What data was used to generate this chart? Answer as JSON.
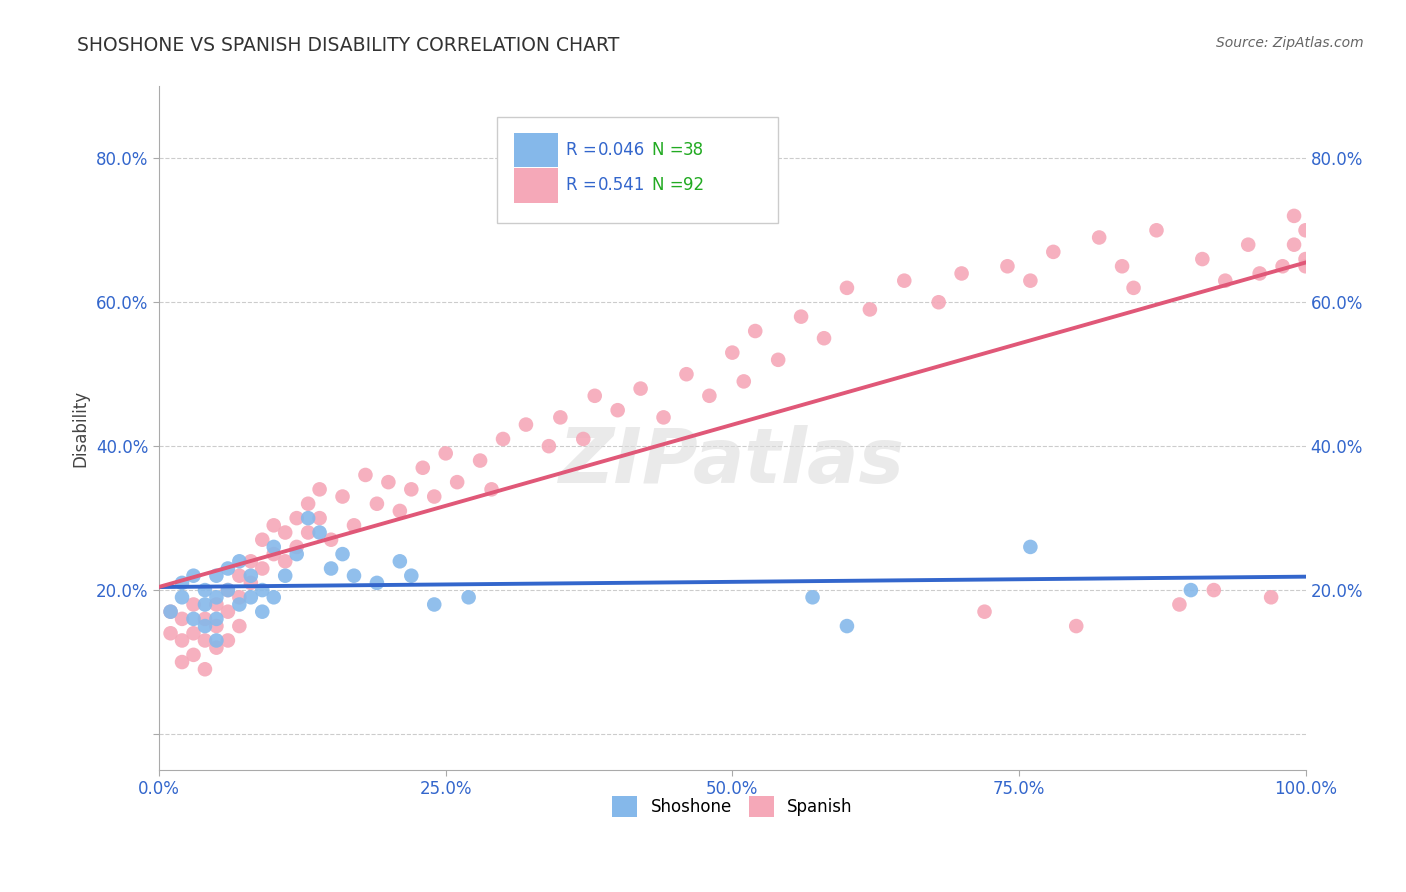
{
  "title": "SHOSHONE VS SPANISH DISABILITY CORRELATION CHART",
  "source": "Source: ZipAtlas.com",
  "ylabel": "Disability",
  "xlim": [
    0.0,
    1.0
  ],
  "ylim": [
    -0.05,
    0.9
  ],
  "y_ticks": [
    0.0,
    0.2,
    0.4,
    0.6,
    0.8
  ],
  "y_tick_labels": [
    "",
    "20.0%",
    "40.0%",
    "60.0%",
    "80.0%"
  ],
  "x_ticks": [
    0.0,
    0.25,
    0.5,
    0.75,
    1.0
  ],
  "x_tick_labels": [
    "0.0%",
    "25.0%",
    "50.0%",
    "75.0%",
    "100.0%"
  ],
  "shoshone_R": 0.046,
  "shoshone_N": 38,
  "spanish_R": 0.541,
  "spanish_N": 92,
  "shoshone_color": "#85B8EA",
  "spanish_color": "#F5A8B8",
  "shoshone_line_color": "#3366CC",
  "spanish_line_color": "#E05878",
  "legend_N_color": "#22AA22",
  "background_color": "#FFFFFF",
  "grid_color": "#CCCCCC",
  "title_color": "#333333",
  "watermark": "ZIPatlas",
  "shoshone_x": [
    0.01,
    0.02,
    0.02,
    0.03,
    0.03,
    0.04,
    0.04,
    0.04,
    0.05,
    0.05,
    0.05,
    0.05,
    0.06,
    0.06,
    0.07,
    0.07,
    0.08,
    0.08,
    0.09,
    0.09,
    0.1,
    0.1,
    0.11,
    0.12,
    0.13,
    0.14,
    0.15,
    0.16,
    0.17,
    0.19,
    0.21,
    0.22,
    0.24,
    0.27,
    0.57,
    0.6,
    0.76,
    0.9
  ],
  "shoshone_y": [
    0.17,
    0.19,
    0.21,
    0.16,
    0.22,
    0.15,
    0.18,
    0.2,
    0.16,
    0.19,
    0.22,
    0.13,
    0.2,
    0.23,
    0.18,
    0.24,
    0.19,
    0.22,
    0.2,
    0.17,
    0.19,
    0.26,
    0.22,
    0.25,
    0.3,
    0.28,
    0.23,
    0.25,
    0.22,
    0.21,
    0.24,
    0.22,
    0.18,
    0.19,
    0.19,
    0.15,
    0.26,
    0.2
  ],
  "spanish_x": [
    0.01,
    0.01,
    0.02,
    0.02,
    0.02,
    0.03,
    0.03,
    0.03,
    0.04,
    0.04,
    0.04,
    0.05,
    0.05,
    0.05,
    0.06,
    0.06,
    0.06,
    0.07,
    0.07,
    0.07,
    0.08,
    0.08,
    0.09,
    0.09,
    0.1,
    0.1,
    0.11,
    0.11,
    0.12,
    0.12,
    0.13,
    0.13,
    0.14,
    0.14,
    0.15,
    0.16,
    0.17,
    0.18,
    0.19,
    0.2,
    0.21,
    0.22,
    0.23,
    0.24,
    0.25,
    0.26,
    0.28,
    0.29,
    0.3,
    0.32,
    0.34,
    0.35,
    0.37,
    0.38,
    0.4,
    0.42,
    0.44,
    0.46,
    0.48,
    0.5,
    0.51,
    0.52,
    0.54,
    0.56,
    0.58,
    0.6,
    0.62,
    0.65,
    0.68,
    0.7,
    0.72,
    0.74,
    0.76,
    0.78,
    0.8,
    0.82,
    0.84,
    0.87,
    0.89,
    0.91,
    0.93,
    0.95,
    0.96,
    0.97,
    0.98,
    0.99,
    0.99,
    1.0,
    1.0,
    1.0,
    0.85,
    0.92
  ],
  "spanish_y": [
    0.17,
    0.14,
    0.13,
    0.16,
    0.1,
    0.18,
    0.14,
    0.11,
    0.16,
    0.13,
    0.09,
    0.18,
    0.15,
    0.12,
    0.2,
    0.17,
    0.13,
    0.22,
    0.19,
    0.15,
    0.24,
    0.21,
    0.27,
    0.23,
    0.29,
    0.25,
    0.28,
    0.24,
    0.3,
    0.26,
    0.32,
    0.28,
    0.34,
    0.3,
    0.27,
    0.33,
    0.29,
    0.36,
    0.32,
    0.35,
    0.31,
    0.34,
    0.37,
    0.33,
    0.39,
    0.35,
    0.38,
    0.34,
    0.41,
    0.43,
    0.4,
    0.44,
    0.41,
    0.47,
    0.45,
    0.48,
    0.44,
    0.5,
    0.47,
    0.53,
    0.49,
    0.56,
    0.52,
    0.58,
    0.55,
    0.62,
    0.59,
    0.63,
    0.6,
    0.64,
    0.17,
    0.65,
    0.63,
    0.67,
    0.15,
    0.69,
    0.65,
    0.7,
    0.18,
    0.66,
    0.63,
    0.68,
    0.64,
    0.19,
    0.65,
    0.68,
    0.72,
    0.66,
    0.7,
    0.65,
    0.62,
    0.2
  ]
}
